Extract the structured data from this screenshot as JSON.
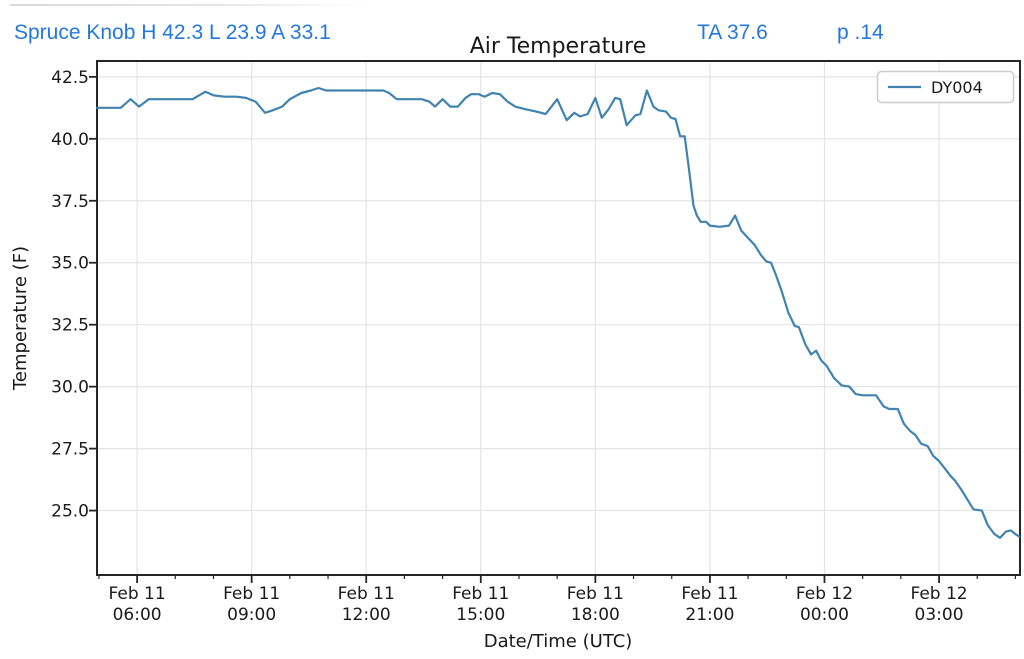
{
  "header": {
    "station_summary": "Spruce Knob H 42.3 L 23.9 A 33.1",
    "ta_value": "TA 37.6",
    "p_value": "p .14",
    "accent_color": "#2578db"
  },
  "chart_data": {
    "type": "line",
    "title": "Air Temperature",
    "xlabel": "Date/Time (UTC)",
    "ylabel": "Temperature (F)",
    "grid": true,
    "legend_position": "upper right",
    "x_unit": "hours since Feb 11 00:00 UTC",
    "xlim": [
      4.95,
      29.12
    ],
    "ylim": [
      22.4,
      43.14
    ],
    "x_minor_step_hours": 1,
    "grid_color": "#e4e4e5",
    "axis_color": "#262626",
    "yticks": [
      {
        "value": 25.0,
        "label": "25.0"
      },
      {
        "value": 27.5,
        "label": "27.5"
      },
      {
        "value": 30.0,
        "label": "30.0"
      },
      {
        "value": 32.5,
        "label": "32.5"
      },
      {
        "value": 35.0,
        "label": "35.0"
      },
      {
        "value": 37.5,
        "label": "37.5"
      },
      {
        "value": 40.0,
        "label": "40.0"
      },
      {
        "value": 42.5,
        "label": "42.5"
      }
    ],
    "xticks": [
      {
        "value": 6,
        "date": "Feb 11",
        "time": "06:00"
      },
      {
        "value": 9,
        "date": "Feb 11",
        "time": "09:00"
      },
      {
        "value": 12,
        "date": "Feb 11",
        "time": "12:00"
      },
      {
        "value": 15,
        "date": "Feb 11",
        "time": "15:00"
      },
      {
        "value": 18,
        "date": "Feb 11",
        "time": "18:00"
      },
      {
        "value": 21,
        "date": "Feb 11",
        "time": "21:00"
      },
      {
        "value": 24,
        "date": "Feb 12",
        "time": "00:00"
      },
      {
        "value": 27,
        "date": "Feb 12",
        "time": "03:00"
      }
    ],
    "series": [
      {
        "name": "DY004",
        "color": "#4083b0",
        "points": [
          [
            4.95,
            41.25
          ],
          [
            5.3,
            41.25
          ],
          [
            5.57,
            41.25
          ],
          [
            5.83,
            41.6
          ],
          [
            6.05,
            41.3
          ],
          [
            6.3,
            41.6
          ],
          [
            6.7,
            41.6
          ],
          [
            7.1,
            41.6
          ],
          [
            7.45,
            41.6
          ],
          [
            7.79,
            41.9
          ],
          [
            8.0,
            41.75
          ],
          [
            8.3,
            41.7
          ],
          [
            8.6,
            41.7
          ],
          [
            8.85,
            41.65
          ],
          [
            9.1,
            41.5
          ],
          [
            9.35,
            41.05
          ],
          [
            9.55,
            41.15
          ],
          [
            9.8,
            41.3
          ],
          [
            10.0,
            41.6
          ],
          [
            10.3,
            41.85
          ],
          [
            10.55,
            41.95
          ],
          [
            10.75,
            42.05
          ],
          [
            10.95,
            41.95
          ],
          [
            11.35,
            41.95
          ],
          [
            11.75,
            41.95
          ],
          [
            12.15,
            41.95
          ],
          [
            12.45,
            41.95
          ],
          [
            12.6,
            41.85
          ],
          [
            12.8,
            41.6
          ],
          [
            13.1,
            41.6
          ],
          [
            13.45,
            41.6
          ],
          [
            13.65,
            41.5
          ],
          [
            13.8,
            41.3
          ],
          [
            14.0,
            41.6
          ],
          [
            14.2,
            41.3
          ],
          [
            14.4,
            41.3
          ],
          [
            14.6,
            41.65
          ],
          [
            14.75,
            41.8
          ],
          [
            14.95,
            41.8
          ],
          [
            15.1,
            41.7
          ],
          [
            15.3,
            41.85
          ],
          [
            15.5,
            41.8
          ],
          [
            15.7,
            41.5
          ],
          [
            15.9,
            41.3
          ],
          [
            16.15,
            41.2
          ],
          [
            16.45,
            41.1
          ],
          [
            16.7,
            41.0
          ],
          [
            17.0,
            41.6
          ],
          [
            17.25,
            40.75
          ],
          [
            17.45,
            41.05
          ],
          [
            17.6,
            40.9
          ],
          [
            17.8,
            41.0
          ],
          [
            18.0,
            41.65
          ],
          [
            18.17,
            40.85
          ],
          [
            18.35,
            41.2
          ],
          [
            18.52,
            41.65
          ],
          [
            18.65,
            41.6
          ],
          [
            18.82,
            40.55
          ],
          [
            19.05,
            40.95
          ],
          [
            19.18,
            41.0
          ],
          [
            19.35,
            41.95
          ],
          [
            19.52,
            41.3
          ],
          [
            19.65,
            41.15
          ],
          [
            19.85,
            41.1
          ],
          [
            19.98,
            40.85
          ],
          [
            20.1,
            40.8
          ],
          [
            20.22,
            40.1
          ],
          [
            20.34,
            40.1
          ],
          [
            20.45,
            38.8
          ],
          [
            20.57,
            37.3
          ],
          [
            20.66,
            36.9
          ],
          [
            20.76,
            36.65
          ],
          [
            20.9,
            36.65
          ],
          [
            21.0,
            36.5
          ],
          [
            21.25,
            36.45
          ],
          [
            21.5,
            36.5
          ],
          [
            21.66,
            36.9
          ],
          [
            21.82,
            36.3
          ],
          [
            22.0,
            36.0
          ],
          [
            22.18,
            35.7
          ],
          [
            22.34,
            35.3
          ],
          [
            22.48,
            35.05
          ],
          [
            22.6,
            35.0
          ],
          [
            22.73,
            34.5
          ],
          [
            22.88,
            33.85
          ],
          [
            23.05,
            33.0
          ],
          [
            23.22,
            32.45
          ],
          [
            23.33,
            32.4
          ],
          [
            23.5,
            31.7
          ],
          [
            23.65,
            31.3
          ],
          [
            23.78,
            31.45
          ],
          [
            23.92,
            31.05
          ],
          [
            24.05,
            30.85
          ],
          [
            24.25,
            30.35
          ],
          [
            24.45,
            30.05
          ],
          [
            24.65,
            30.0
          ],
          [
            24.82,
            29.7
          ],
          [
            25.0,
            29.65
          ],
          [
            25.35,
            29.65
          ],
          [
            25.55,
            29.2
          ],
          [
            25.7,
            29.1
          ],
          [
            25.92,
            29.1
          ],
          [
            26.08,
            28.5
          ],
          [
            26.25,
            28.2
          ],
          [
            26.38,
            28.05
          ],
          [
            26.53,
            27.7
          ],
          [
            26.7,
            27.6
          ],
          [
            26.85,
            27.2
          ],
          [
            27.0,
            27.0
          ],
          [
            27.15,
            26.7
          ],
          [
            27.3,
            26.4
          ],
          [
            27.42,
            26.2
          ],
          [
            27.58,
            25.85
          ],
          [
            27.76,
            25.4
          ],
          [
            27.9,
            25.05
          ],
          [
            28.12,
            25.0
          ],
          [
            28.28,
            24.4
          ],
          [
            28.45,
            24.05
          ],
          [
            28.6,
            23.9
          ],
          [
            28.75,
            24.15
          ],
          [
            28.88,
            24.2
          ],
          [
            29.0,
            24.05
          ],
          [
            29.1,
            23.95
          ]
        ]
      }
    ]
  }
}
